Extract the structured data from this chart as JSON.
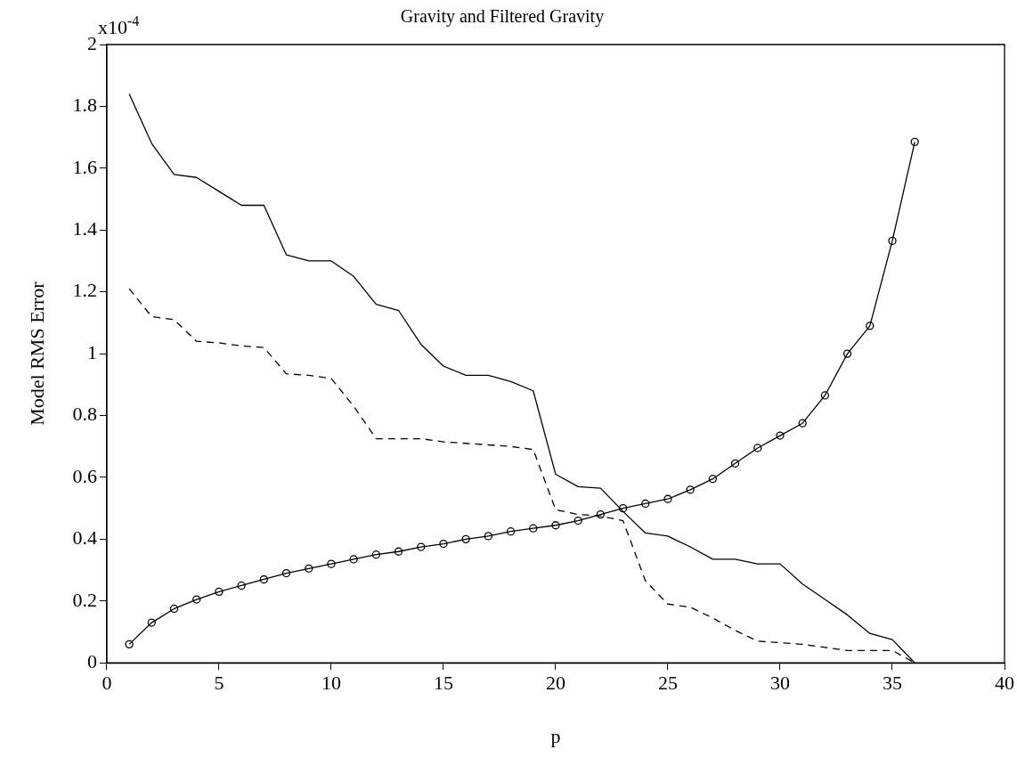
{
  "chart_data": {
    "type": "line",
    "title": "Gravity and Filtered Gravity",
    "xlabel": "p",
    "ylabel": "Model RMS Error",
    "annotations": [
      "x10$^{-4}$"
    ],
    "x": [
      1,
      2,
      3,
      4,
      5,
      6,
      7,
      8,
      9,
      10,
      11,
      12,
      13,
      14,
      15,
      16,
      17,
      18,
      19,
      20,
      21,
      22,
      23,
      24,
      25,
      26,
      27,
      28,
      29,
      30,
      31,
      32,
      33,
      34,
      35,
      36
    ],
    "series": [
      {
        "color": "#000000",
        "line_style": "solid",
        "marker": "none",
        "values": [
          1.84,
          1.68,
          1.58,
          1.57,
          1.525,
          1.48,
          1.48,
          1.32,
          1.3,
          1.3,
          1.25,
          1.16,
          1.14,
          1.03,
          0.96,
          0.93,
          0.93,
          0.91,
          0.88,
          0.61,
          0.57,
          0.565,
          0.49,
          0.42,
          0.41,
          0.375,
          0.335,
          0.335,
          0.32,
          0.32,
          0.255,
          0.205,
          0.155,
          0.095,
          0.075,
          0
        ]
      },
      {
        "color": "#000000",
        "line_style": "dashed",
        "marker": "none",
        "values": [
          1.21,
          1.12,
          1.11,
          1.04,
          1.035,
          1.025,
          1.02,
          0.935,
          0.93,
          0.92,
          0.83,
          0.725,
          0.725,
          0.725,
          0.715,
          0.71,
          0.705,
          0.7,
          0.69,
          0.495,
          0.48,
          0.475,
          0.46,
          0.265,
          0.19,
          0.18,
          0.145,
          0.105,
          0.07,
          0.065,
          0.06,
          0.05,
          0.04,
          0.04,
          0.04,
          0
        ]
      },
      {
        "color": "#000000",
        "line_style": "solid",
        "marker": "circle",
        "values": [
          0.06,
          0.13,
          0.175,
          0.205,
          0.23,
          0.25,
          0.27,
          0.29,
          0.305,
          0.32,
          0.335,
          0.35,
          0.36,
          0.375,
          0.385,
          0.4,
          0.41,
          0.425,
          0.435,
          0.445,
          0.46,
          0.48,
          0.5,
          0.515,
          0.53,
          0.56,
          0.595,
          0.645,
          0.695,
          0.735,
          0.775,
          0.865,
          1.0,
          1.09,
          1.365,
          1.685
        ]
      }
    ],
    "xlim": [
      0,
      40
    ],
    "xticks": [
      0,
      5,
      10,
      15,
      20,
      25,
      30,
      35,
      40
    ],
    "ylim": [
      0,
      2
    ],
    "yticks": [
      0,
      0.2,
      0.4,
      0.6,
      0.8,
      1,
      1.2,
      1.4,
      1.6,
      1.8,
      2
    ],
    "grid": false,
    "legend": false
  }
}
